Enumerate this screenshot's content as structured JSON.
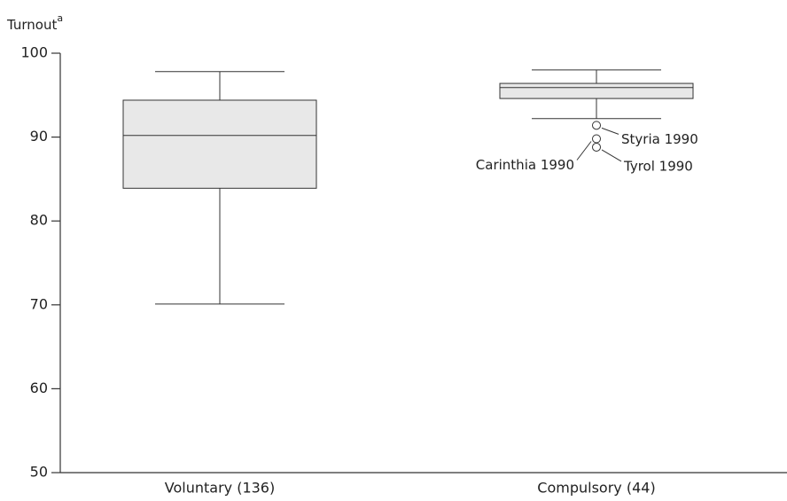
{
  "chart_data": {
    "type": "box",
    "ylabel": "Turnout",
    "ylabel_superscript": "a",
    "categories": [
      "Voluntary (136)",
      "Compulsory (44)"
    ],
    "boxes": [
      {
        "whislo": 70.1,
        "q1": 83.9,
        "med": 90.2,
        "q3": 94.4,
        "whishi": 97.8,
        "outliers": []
      },
      {
        "whislo": 92.2,
        "q1": 94.6,
        "med": 95.9,
        "q3": 96.4,
        "whishi": 98.0,
        "outliers": [
          {
            "value": 91.4,
            "label": "Styria 1990"
          },
          {
            "value": 89.8,
            "label": "Carinthia 1990"
          },
          {
            "value": 88.8,
            "label": "Tyrol 1990"
          }
        ]
      }
    ],
    "color": "#e8e8e8",
    "ylim": [
      50,
      100
    ],
    "yticks": [
      50,
      60,
      70,
      80,
      90,
      100
    ]
  }
}
